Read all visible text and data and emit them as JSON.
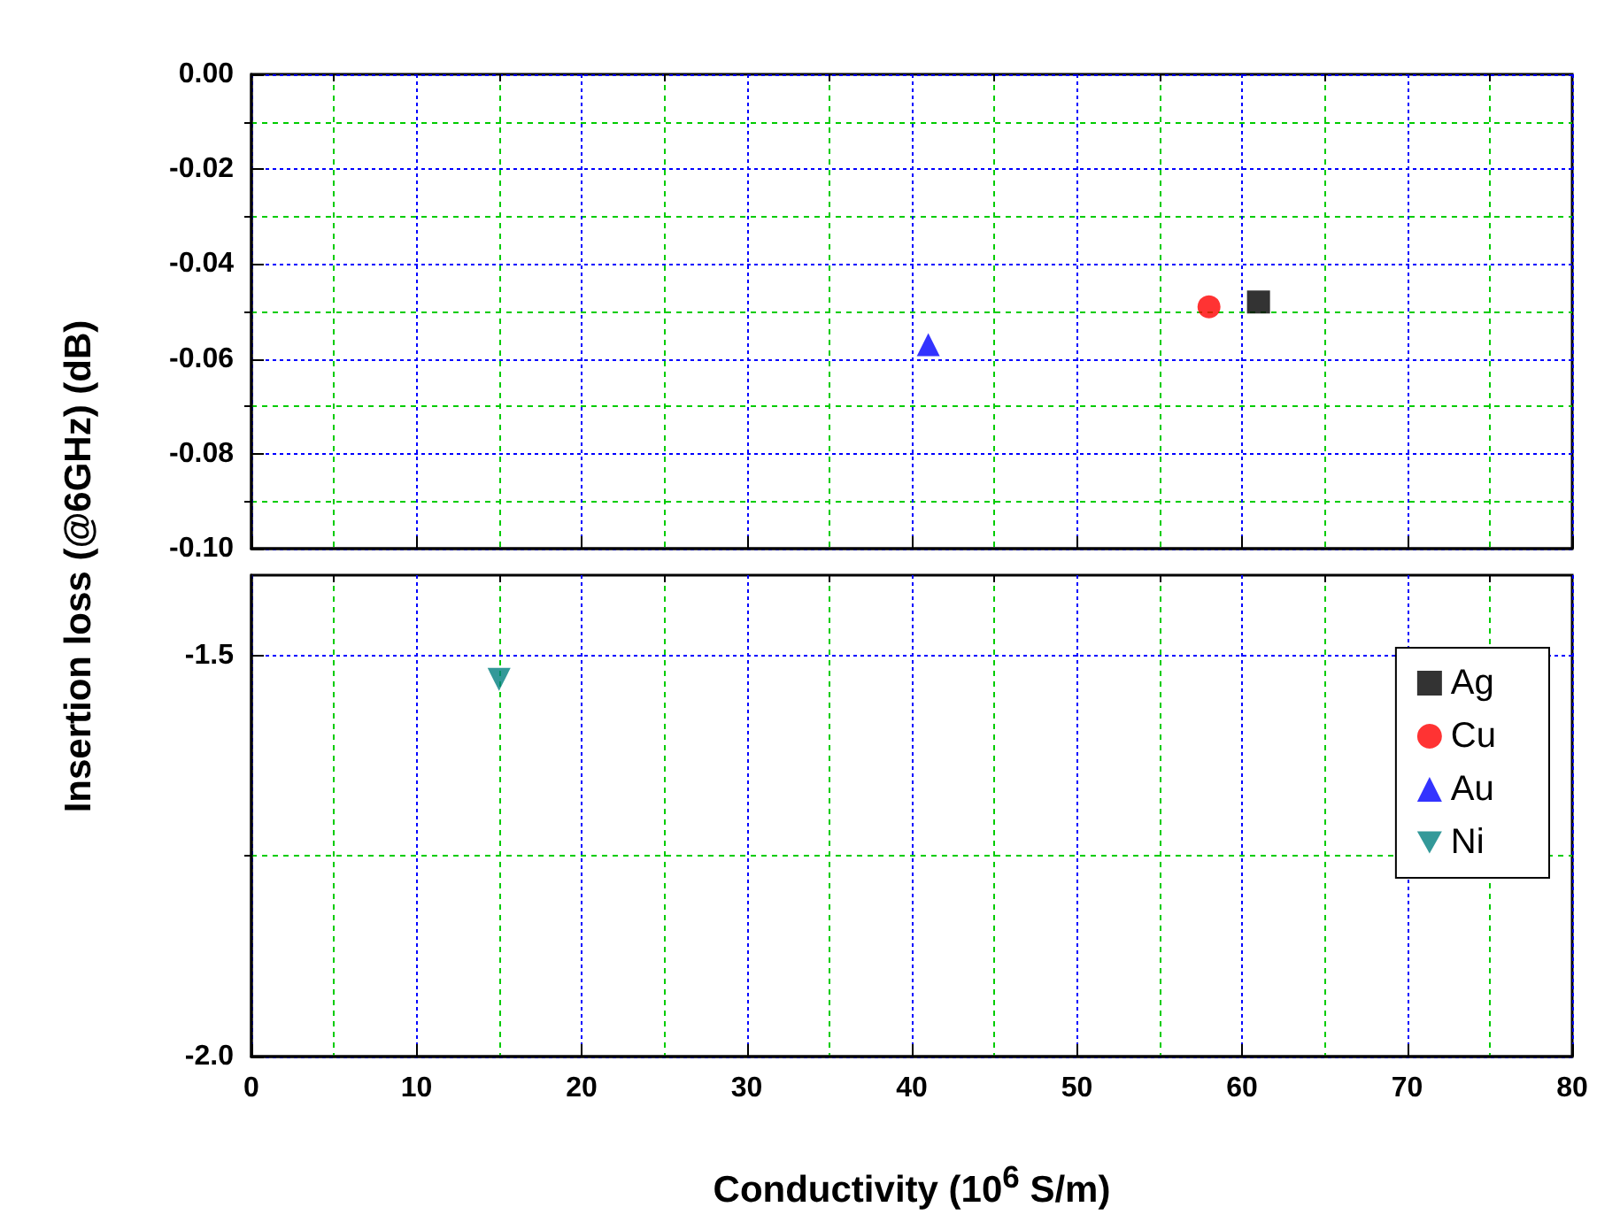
{
  "chart_data": [
    {
      "type": "scatter",
      "ylabel": "Insertion loss (@6GHz) (dB)",
      "tick_labels": "y",
      "xlim": [
        0,
        80
      ],
      "xticks": [
        0,
        {
          "value": 5,
          "label": null
        },
        10,
        {
          "value": 15,
          "label": null
        },
        20,
        {
          "value": 25,
          "label": null
        },
        30,
        {
          "value": 35,
          "label": null
        },
        40,
        {
          "value": 45,
          "label": null
        },
        50,
        {
          "value": 55,
          "label": null
        },
        60,
        {
          "value": 65,
          "label": null
        },
        70,
        {
          "value": 75,
          "label": null
        },
        80
      ],
      "ylim": [
        -0.1,
        0
      ],
      "yticks": [
        {
          "value": 0,
          "label": "0.00"
        },
        {
          "value": -0.01,
          "label": null
        },
        {
          "value": -0.02,
          "label": "-0.02"
        },
        {
          "value": -0.03,
          "label": null
        },
        {
          "value": -0.04,
          "label": "-0.04"
        },
        {
          "value": -0.05,
          "label": null
        },
        {
          "value": -0.06,
          "label": "-0.06"
        },
        {
          "value": -0.07,
          "label": null
        },
        {
          "value": -0.08,
          "label": "-0.08"
        },
        {
          "value": -0.09,
          "label": null
        },
        {
          "value": -0.1,
          "label": "-0.10"
        }
      ],
      "grid": true,
      "legend": false,
      "series": [
        {
          "color": "#000000",
          "marker": "square",
          "x": [
            61
          ],
          "values": [
            -0.048
          ]
        },
        {
          "color": "#ff0000",
          "marker": "circle",
          "x": [
            58
          ],
          "values": [
            -0.049
          ]
        },
        {
          "color": "#0000ff",
          "marker": "triangle",
          "x": [
            41
          ],
          "values": [
            -0.057
          ]
        }
      ]
    },
    {
      "type": "scatter",
      "xlabel": "Conductivity (10$^{6}$ S/m)",
      "xlim": [
        0,
        80
      ],
      "xticks": [
        0,
        {
          "value": 5,
          "label": null
        },
        10,
        {
          "value": 15,
          "label": null
        },
        20,
        {
          "value": 25,
          "label": null
        },
        30,
        {
          "value": 35,
          "label": null
        },
        40,
        {
          "value": 45,
          "label": null
        },
        50,
        {
          "value": 55,
          "label": null
        },
        60,
        {
          "value": 65,
          "label": null
        },
        70,
        {
          "value": 75,
          "label": null
        },
        80
      ],
      "ylim": [
        -2.0,
        -1.4
      ],
      "yticks": [
        {
          "value": -1.5,
          "label": "-1.5"
        },
        {
          "value": -1.75,
          "label": null
        },
        {
          "value": -2.0,
          "label": "-2.0"
        }
      ],
      "grid": true,
      "legend": "right",
      "series": [
        {
          "name": "Ag",
          "color": "#000000",
          "marker": "square"
        },
        {
          "name": "Cu",
          "color": "#ff0000",
          "marker": "circle"
        },
        {
          "name": "Au",
          "color": "#0000ff",
          "marker": "triangle"
        },
        {
          "name": "Ni",
          "color": "#008080",
          "marker": "triangle-down",
          "x": [
            15
          ],
          "values": [
            -1.53
          ]
        }
      ]
    }
  ]
}
